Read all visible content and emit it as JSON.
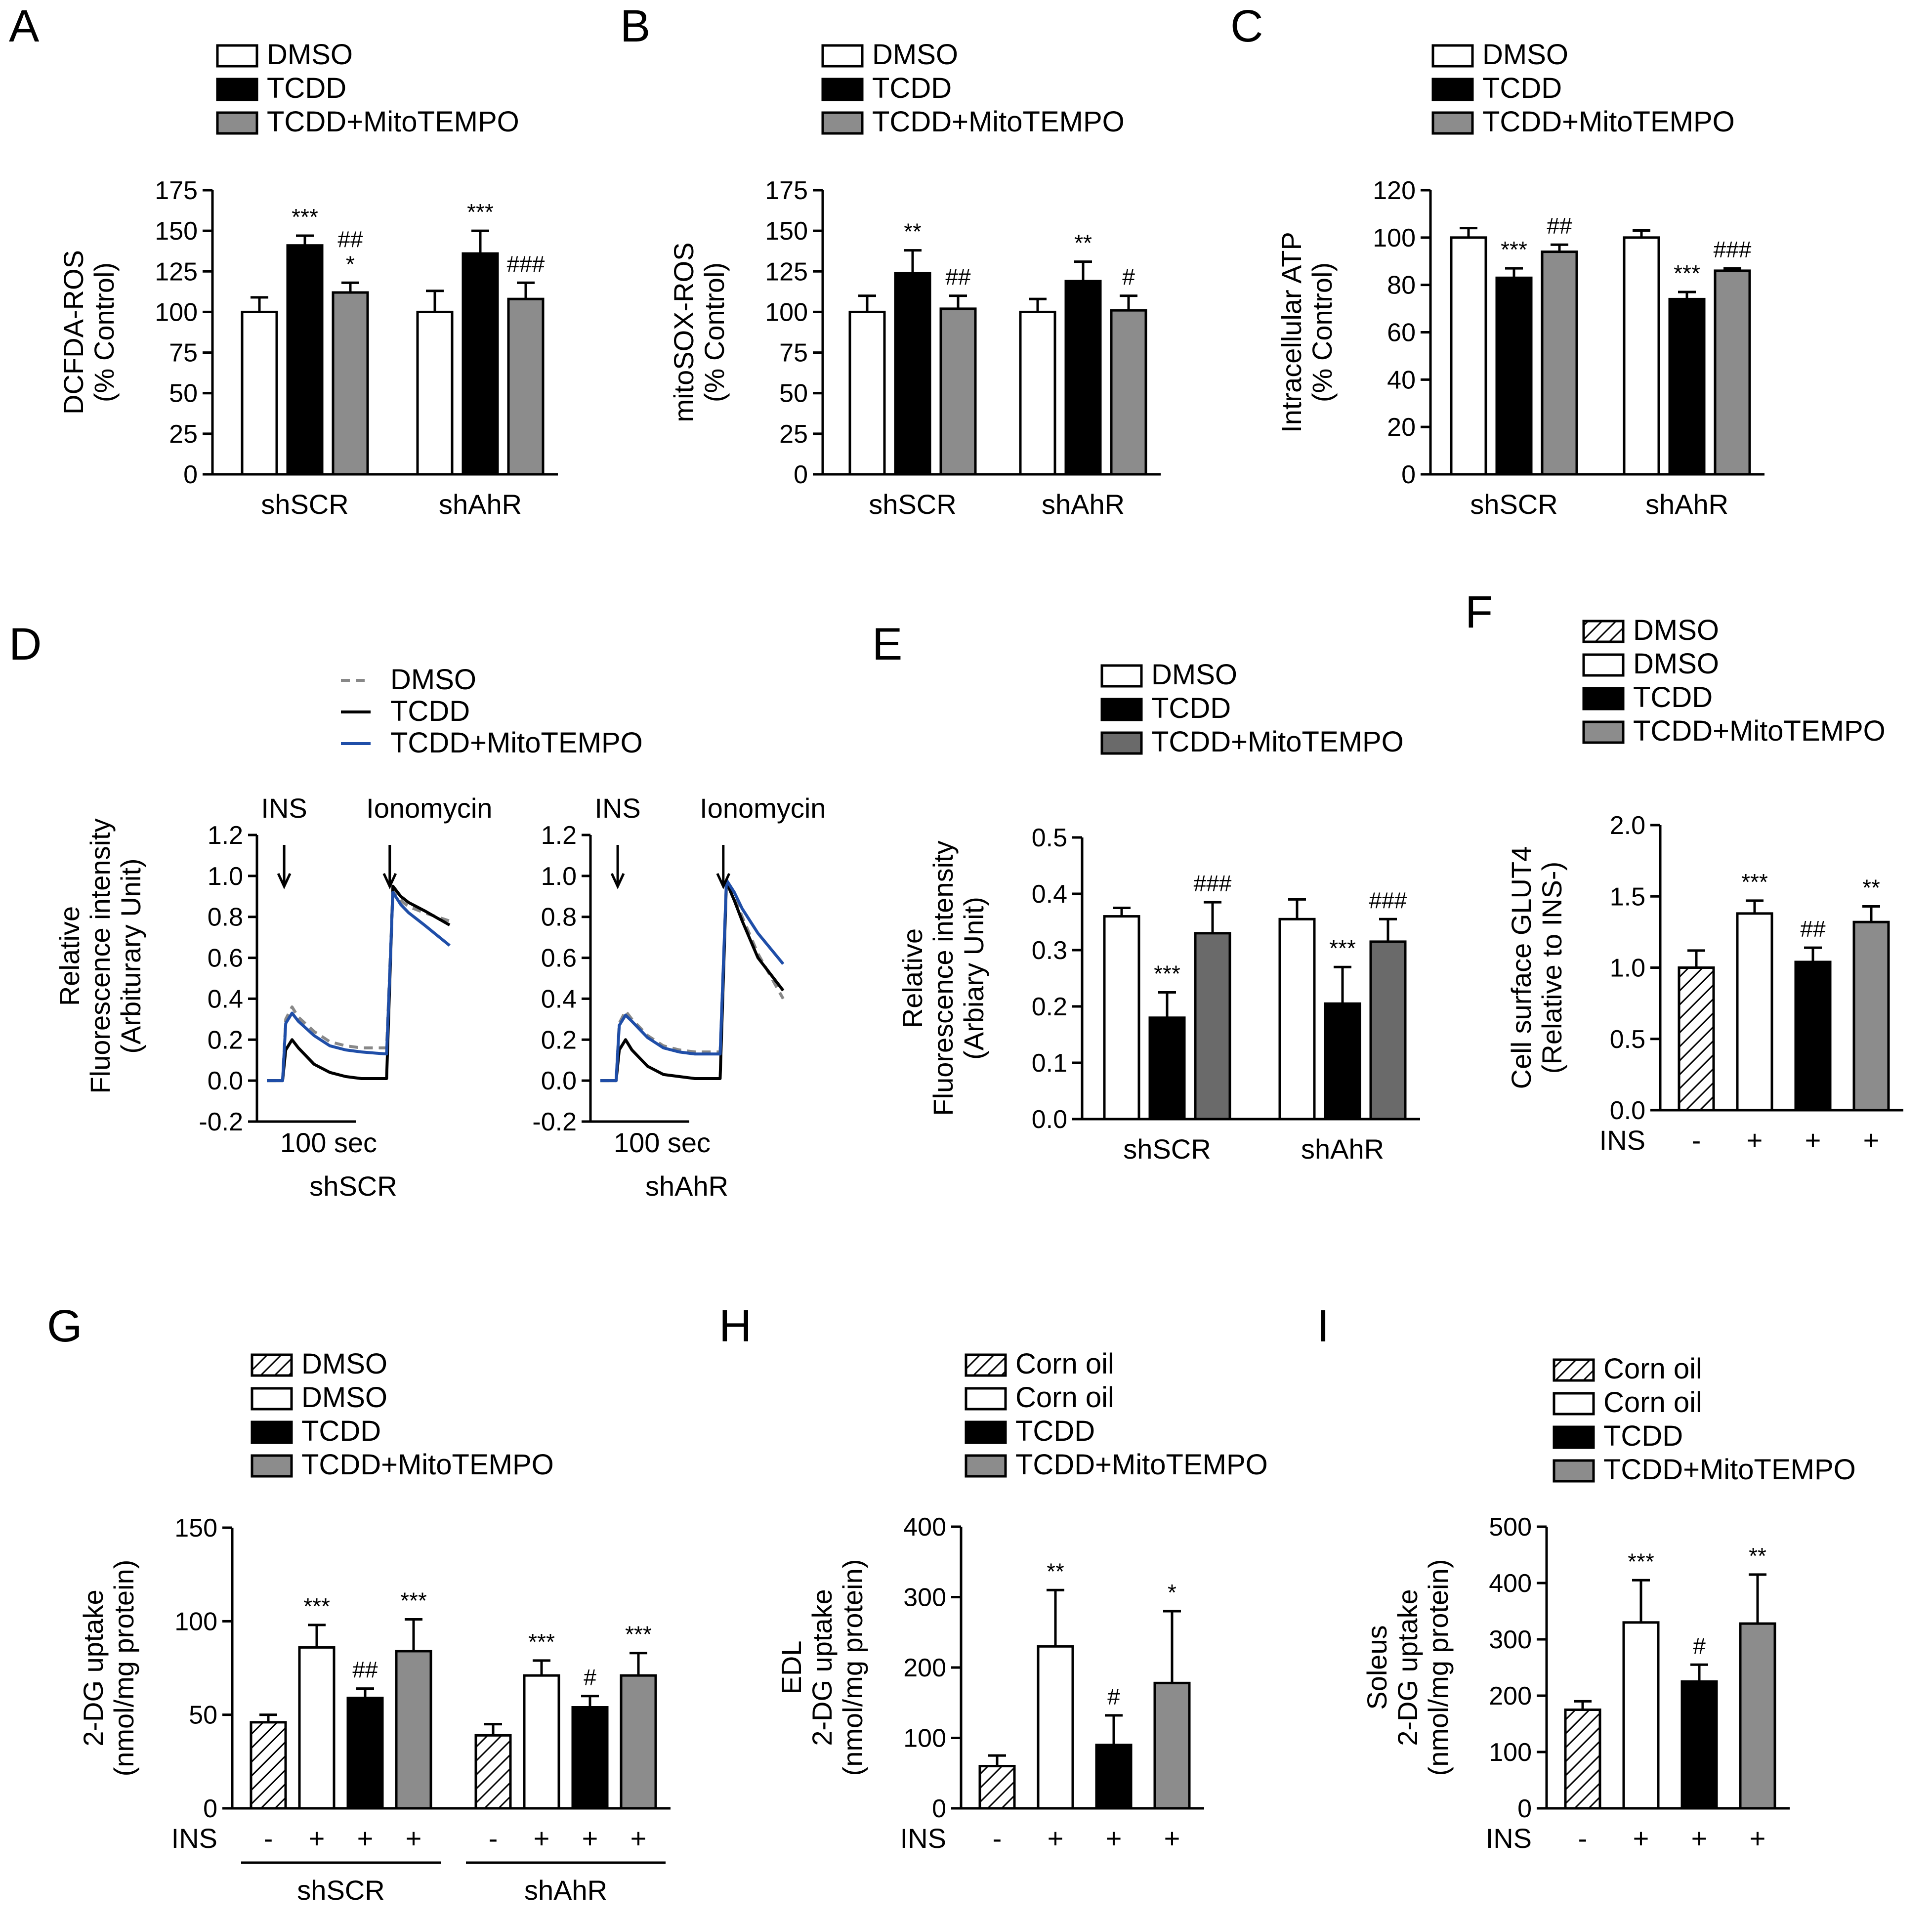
{
  "colors": {
    "dmso": "#ffffff",
    "tcdd": "#000000",
    "mito": "#8c8c8c",
    "mito_dark": "#6a6a6a",
    "trace_dmso": "#888888",
    "trace_tcdd": "#000000",
    "trace_mito": "#1f4ea8"
  },
  "chart_data": [
    {
      "id": "A",
      "panel_label": "A",
      "type": "bar",
      "legend": [
        "DMSO",
        "TCDD",
        "TCDD+MitoTEMPO"
      ],
      "ylabel_lines": [
        "DCFDA-ROS",
        "(% Control)"
      ],
      "ylim": [
        0,
        175
      ],
      "yticks": [
        0,
        25,
        50,
        75,
        100,
        125,
        150,
        175
      ],
      "groups": [
        {
          "label": "shSCR",
          "bars": [
            {
              "fill": "dmso",
              "value": 100,
              "err": 9,
              "sig": []
            },
            {
              "fill": "tcdd",
              "value": 141,
              "err": 6,
              "sig": [
                "***"
              ]
            },
            {
              "fill": "mito",
              "value": 112,
              "err": 6,
              "sig": [
                "##",
                "*"
              ]
            }
          ]
        },
        {
          "label": "shAhR",
          "bars": [
            {
              "fill": "dmso",
              "value": 100,
              "err": 13,
              "sig": []
            },
            {
              "fill": "tcdd",
              "value": 136,
              "err": 14,
              "sig": [
                "***"
              ]
            },
            {
              "fill": "mito",
              "value": 108,
              "err": 10,
              "sig": [
                "###"
              ]
            }
          ]
        }
      ]
    },
    {
      "id": "B",
      "panel_label": "B",
      "type": "bar",
      "legend": [
        "DMSO",
        "TCDD",
        "TCDD+MitoTEMPO"
      ],
      "ylabel_lines": [
        "mitoSOX-ROS",
        "(% Control)"
      ],
      "ylim": [
        0,
        175
      ],
      "yticks": [
        0,
        25,
        50,
        75,
        100,
        125,
        150,
        175
      ],
      "groups": [
        {
          "label": "shSCR",
          "bars": [
            {
              "fill": "dmso",
              "value": 100,
              "err": 10,
              "sig": []
            },
            {
              "fill": "tcdd",
              "value": 124,
              "err": 14,
              "sig": [
                "**"
              ]
            },
            {
              "fill": "mito",
              "value": 102,
              "err": 8,
              "sig": [
                "##"
              ]
            }
          ]
        },
        {
          "label": "shAhR",
          "bars": [
            {
              "fill": "dmso",
              "value": 100,
              "err": 8,
              "sig": []
            },
            {
              "fill": "tcdd",
              "value": 119,
              "err": 12,
              "sig": [
                "**"
              ]
            },
            {
              "fill": "mito",
              "value": 101,
              "err": 9,
              "sig": [
                "#"
              ]
            }
          ]
        }
      ]
    },
    {
      "id": "C",
      "panel_label": "C",
      "type": "bar",
      "legend": [
        "DMSO",
        "TCDD",
        "TCDD+MitoTEMPO"
      ],
      "ylabel_lines": [
        "Intracellular ATP",
        "(% Control)"
      ],
      "ylim": [
        0,
        120
      ],
      "yticks": [
        0,
        20,
        40,
        60,
        80,
        100,
        120
      ],
      "groups": [
        {
          "label": "shSCR",
          "bars": [
            {
              "fill": "dmso",
              "value": 100,
              "err": 4,
              "sig": []
            },
            {
              "fill": "tcdd",
              "value": 83,
              "err": 4,
              "sig": [
                "***"
              ]
            },
            {
              "fill": "mito",
              "value": 94,
              "err": 3,
              "sig": [
                "##"
              ]
            }
          ]
        },
        {
          "label": "shAhR",
          "bars": [
            {
              "fill": "dmso",
              "value": 100,
              "err": 3,
              "sig": []
            },
            {
              "fill": "tcdd",
              "value": 74,
              "err": 3,
              "sig": [
                "***"
              ]
            },
            {
              "fill": "mito",
              "value": 86,
              "err": 1,
              "sig": [
                "###"
              ]
            }
          ]
        }
      ]
    },
    {
      "id": "D",
      "panel_label": "D",
      "type": "line",
      "legend": [
        "DMSO",
        "TCDD",
        "TCDD+MitoTEMPO"
      ],
      "ylabel_lines": [
        "Relative",
        "Fluorescence intensity",
        "(Arbiturary Unit)"
      ],
      "ylim": [
        -0.2,
        1.2
      ],
      "yticks": [
        "-0.2",
        "0.0",
        "0.2",
        "0.4",
        "0.6",
        "0.8",
        "1.0",
        "1.2"
      ],
      "scale_bar": "100 sec",
      "arrows": [
        "INS",
        "Ionomycin"
      ],
      "subplots": [
        {
          "label": "shSCR",
          "series": [
            {
              "name": "DMSO",
              "style": "dmso",
              "x": [
                0,
                25,
                50,
                60,
                80,
                100,
                150,
                200,
                250,
                300,
                380,
                400,
                425,
                450,
                500,
                580
              ],
              "y": [
                0,
                0,
                0,
                0.3,
                0.36,
                0.31,
                0.24,
                0.19,
                0.17,
                0.16,
                0.16,
                0.93,
                0.88,
                0.85,
                0.82,
                0.78
              ]
            },
            {
              "name": "TCDD",
              "style": "tcdd",
              "x": [
                0,
                25,
                50,
                60,
                80,
                100,
                150,
                200,
                250,
                300,
                380,
                400,
                425,
                450,
                500,
                580
              ],
              "y": [
                0,
                0,
                0,
                0.15,
                0.2,
                0.16,
                0.08,
                0.04,
                0.02,
                0.01,
                0.01,
                0.95,
                0.9,
                0.87,
                0.83,
                0.76
              ]
            },
            {
              "name": "TCDD+MitoTEMPO",
              "style": "mito",
              "x": [
                0,
                25,
                50,
                60,
                80,
                100,
                150,
                200,
                250,
                300,
                380,
                400,
                425,
                450,
                500,
                580
              ],
              "y": [
                0,
                0,
                0,
                0.28,
                0.33,
                0.29,
                0.22,
                0.17,
                0.15,
                0.14,
                0.13,
                0.92,
                0.86,
                0.82,
                0.76,
                0.66
              ]
            }
          ]
        },
        {
          "label": "shAhR",
          "series": [
            {
              "name": "DMSO",
              "style": "dmso",
              "x": [
                0,
                25,
                50,
                60,
                80,
                100,
                150,
                200,
                250,
                300,
                380,
                400,
                425,
                450,
                500,
                580
              ],
              "y": [
                0,
                0,
                0,
                0.28,
                0.34,
                0.3,
                0.22,
                0.17,
                0.15,
                0.14,
                0.14,
                0.97,
                0.9,
                0.8,
                0.62,
                0.4
              ]
            },
            {
              "name": "TCDD",
              "style": "tcdd",
              "x": [
                0,
                25,
                50,
                60,
                80,
                100,
                150,
                200,
                250,
                300,
                380,
                400,
                425,
                450,
                500,
                580
              ],
              "y": [
                0,
                0,
                0,
                0.15,
                0.2,
                0.15,
                0.07,
                0.03,
                0.02,
                0.01,
                0.01,
                0.97,
                0.88,
                0.78,
                0.6,
                0.44
              ]
            },
            {
              "name": "TCDD+MitoTEMPO",
              "style": "mito",
              "x": [
                0,
                25,
                50,
                60,
                80,
                100,
                150,
                200,
                250,
                300,
                380,
                400,
                425,
                450,
                500,
                580
              ],
              "y": [
                0,
                0,
                0,
                0.27,
                0.32,
                0.29,
                0.21,
                0.16,
                0.14,
                0.13,
                0.13,
                0.98,
                0.92,
                0.84,
                0.72,
                0.57
              ]
            }
          ]
        }
      ]
    },
    {
      "id": "E",
      "panel_label": "E",
      "type": "bar",
      "legend": [
        "DMSO",
        "TCDD",
        "TCDD+MitoTEMPO"
      ],
      "ylabel_lines": [
        "Relative",
        "Fluorescence intensity",
        "(Arbiary Unit)"
      ],
      "ylim": [
        0,
        0.5
      ],
      "yticks": [
        "0.0",
        "0.1",
        "0.2",
        "0.3",
        "0.4",
        "0.5"
      ],
      "groups": [
        {
          "label": "shSCR",
          "bars": [
            {
              "fill": "dmso",
              "value": 0.36,
              "err": 0.015,
              "sig": []
            },
            {
              "fill": "tcdd",
              "value": 0.18,
              "err": 0.045,
              "sig": [
                "***"
              ]
            },
            {
              "fill": "mito_dark",
              "value": 0.33,
              "err": 0.055,
              "sig": [
                "###"
              ]
            }
          ]
        },
        {
          "label": "shAhR",
          "bars": [
            {
              "fill": "dmso",
              "value": 0.355,
              "err": 0.035,
              "sig": []
            },
            {
              "fill": "tcdd",
              "value": 0.205,
              "err": 0.065,
              "sig": [
                "***"
              ]
            },
            {
              "fill": "mito_dark",
              "value": 0.315,
              "err": 0.04,
              "sig": [
                "###"
              ]
            }
          ]
        }
      ]
    },
    {
      "id": "F",
      "panel_label": "F",
      "type": "bar",
      "legend": [
        "DMSO",
        "DMSO",
        "TCDD",
        "TCDD+MitoTEMPO"
      ],
      "legend_fills": [
        "hatch",
        "dmso",
        "tcdd",
        "mito"
      ],
      "ylabel_lines": [
        "Cell surface GLUT4",
        "(Relative to INS-)"
      ],
      "ylim": [
        0,
        2.0
      ],
      "yticks": [
        "0.0",
        "0.5",
        "1.0",
        "1.5",
        "2.0"
      ],
      "ins_label": "INS",
      "groups": [
        {
          "label": "",
          "bars": [
            {
              "fill": "hatch",
              "value": 1.0,
              "err": 0.12,
              "ins": "-",
              "sig": []
            },
            {
              "fill": "dmso",
              "value": 1.38,
              "err": 0.09,
              "ins": "+",
              "sig": [
                "***"
              ]
            },
            {
              "fill": "tcdd",
              "value": 1.04,
              "err": 0.1,
              "ins": "+",
              "sig": [
                "##"
              ]
            },
            {
              "fill": "mito",
              "value": 1.32,
              "err": 0.11,
              "ins": "+",
              "sig": [
                "**"
              ]
            }
          ]
        }
      ]
    },
    {
      "id": "G",
      "panel_label": "G",
      "type": "bar",
      "legend": [
        "DMSO",
        "DMSO",
        "TCDD",
        "TCDD+MitoTEMPO"
      ],
      "legend_fills": [
        "hatch",
        "dmso",
        "tcdd",
        "mito"
      ],
      "ylabel_lines": [
        "2-DG uptake",
        "(nmol/mg protein)"
      ],
      "ylim": [
        0,
        150
      ],
      "yticks": [
        0,
        50,
        100,
        150
      ],
      "ins_label": "INS",
      "groups": [
        {
          "label": "shSCR",
          "bars": [
            {
              "fill": "hatch",
              "value": 46,
              "err": 4,
              "ins": "-",
              "sig": []
            },
            {
              "fill": "dmso",
              "value": 86,
              "err": 12,
              "ins": "+",
              "sig": [
                "***"
              ]
            },
            {
              "fill": "tcdd",
              "value": 59,
              "err": 5,
              "ins": "+",
              "sig": [
                "##"
              ]
            },
            {
              "fill": "mito",
              "value": 84,
              "err": 17,
              "ins": "+",
              "sig": [
                "***"
              ]
            }
          ]
        },
        {
          "label": "shAhR",
          "bars": [
            {
              "fill": "hatch",
              "value": 39,
              "err": 6,
              "ins": "-",
              "sig": []
            },
            {
              "fill": "dmso",
              "value": 71,
              "err": 8,
              "ins": "+",
              "sig": [
                "***"
              ]
            },
            {
              "fill": "tcdd",
              "value": 54,
              "err": 6,
              "ins": "+",
              "sig": [
                "#"
              ]
            },
            {
              "fill": "mito",
              "value": 71,
              "err": 12,
              "ins": "+",
              "sig": [
                "***"
              ]
            }
          ]
        }
      ]
    },
    {
      "id": "H",
      "panel_label": "H",
      "type": "bar",
      "legend": [
        "Corn oil",
        "Corn oil",
        "TCDD",
        "TCDD+MitoTEMPO"
      ],
      "legend_fills": [
        "hatch",
        "dmso",
        "tcdd",
        "mito"
      ],
      "ylabel_lines": [
        "EDL",
        "2-DG uptake",
        "(nmol/mg protein)"
      ],
      "ylim": [
        0,
        400
      ],
      "yticks": [
        0,
        100,
        200,
        300,
        400
      ],
      "ins_label": "INS",
      "groups": [
        {
          "label": "",
          "bars": [
            {
              "fill": "hatch",
              "value": 60,
              "err": 15,
              "ins": "-",
              "sig": []
            },
            {
              "fill": "dmso",
              "value": 230,
              "err": 80,
              "ins": "+",
              "sig": [
                "**"
              ]
            },
            {
              "fill": "tcdd",
              "value": 90,
              "err": 42,
              "ins": "+",
              "sig": [
                "#"
              ]
            },
            {
              "fill": "mito",
              "value": 178,
              "err": 102,
              "ins": "+",
              "sig": [
                "*"
              ]
            }
          ]
        }
      ]
    },
    {
      "id": "I",
      "panel_label": "I",
      "type": "bar",
      "legend": [
        "Corn oil",
        "Corn oil",
        "TCDD",
        "TCDD+MitoTEMPO"
      ],
      "legend_fills": [
        "hatch",
        "dmso",
        "tcdd",
        "mito"
      ],
      "ylabel_lines": [
        "Soleus",
        "2-DG uptake",
        "(nmol/mg protein)"
      ],
      "ylim": [
        0,
        500
      ],
      "yticks": [
        0,
        100,
        200,
        300,
        400,
        500
      ],
      "ins_label": "INS",
      "groups": [
        {
          "label": "",
          "bars": [
            {
              "fill": "hatch",
              "value": 175,
              "err": 15,
              "ins": "-",
              "sig": []
            },
            {
              "fill": "dmso",
              "value": 330,
              "err": 75,
              "ins": "+",
              "sig": [
                "***"
              ]
            },
            {
              "fill": "tcdd",
              "value": 225,
              "err": 30,
              "ins": "+",
              "sig": [
                "#"
              ]
            },
            {
              "fill": "mito",
              "value": 328,
              "err": 87,
              "ins": "+",
              "sig": [
                "**"
              ]
            }
          ]
        }
      ]
    }
  ]
}
